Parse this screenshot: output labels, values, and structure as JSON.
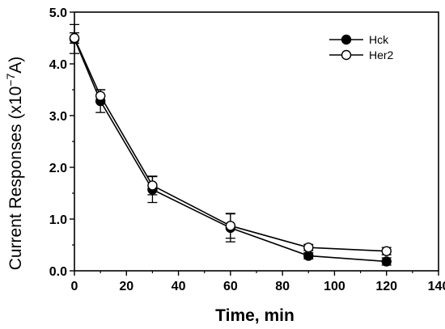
{
  "chart_data": {
    "type": "line",
    "title": "",
    "xlabel": "Time, min",
    "ylabel_prefix": "Current Responses (x10",
    "ylabel_exponent": "−7",
    "ylabel_suffix": "A)",
    "xlim": [
      0,
      140
    ],
    "ylim": [
      0.0,
      5.0
    ],
    "xticks": [
      0,
      20,
      40,
      60,
      80,
      100,
      120,
      140
    ],
    "xtick_labels": [
      "0",
      "20",
      "40",
      "60",
      "80",
      "100",
      "120",
      "140"
    ],
    "yticks": [
      0.0,
      1.0,
      2.0,
      3.0,
      4.0,
      5.0
    ],
    "ytick_labels": [
      "0.0",
      "1.0",
      "2.0",
      "3.0",
      "4.0",
      "5.0"
    ],
    "grid": false,
    "legend_position": "top-right",
    "series": [
      {
        "name": "Hck",
        "marker": "filled-circle",
        "color": "#000000",
        "x": [
          0,
          10,
          30,
          60,
          90,
          120
        ],
        "y": [
          4.48,
          3.28,
          1.57,
          0.83,
          0.29,
          0.18
        ],
        "err": [
          0.28,
          0.22,
          0.25,
          0.27,
          0.06,
          0.07
        ]
      },
      {
        "name": "Her2",
        "marker": "open-circle",
        "color": "#000000",
        "x": [
          0,
          10,
          30,
          60,
          90,
          120
        ],
        "y": [
          4.5,
          3.38,
          1.65,
          0.87,
          0.45,
          0.38
        ],
        "err": [
          0.1,
          0.12,
          0.18,
          0.24,
          0.06,
          0.07
        ]
      }
    ]
  }
}
